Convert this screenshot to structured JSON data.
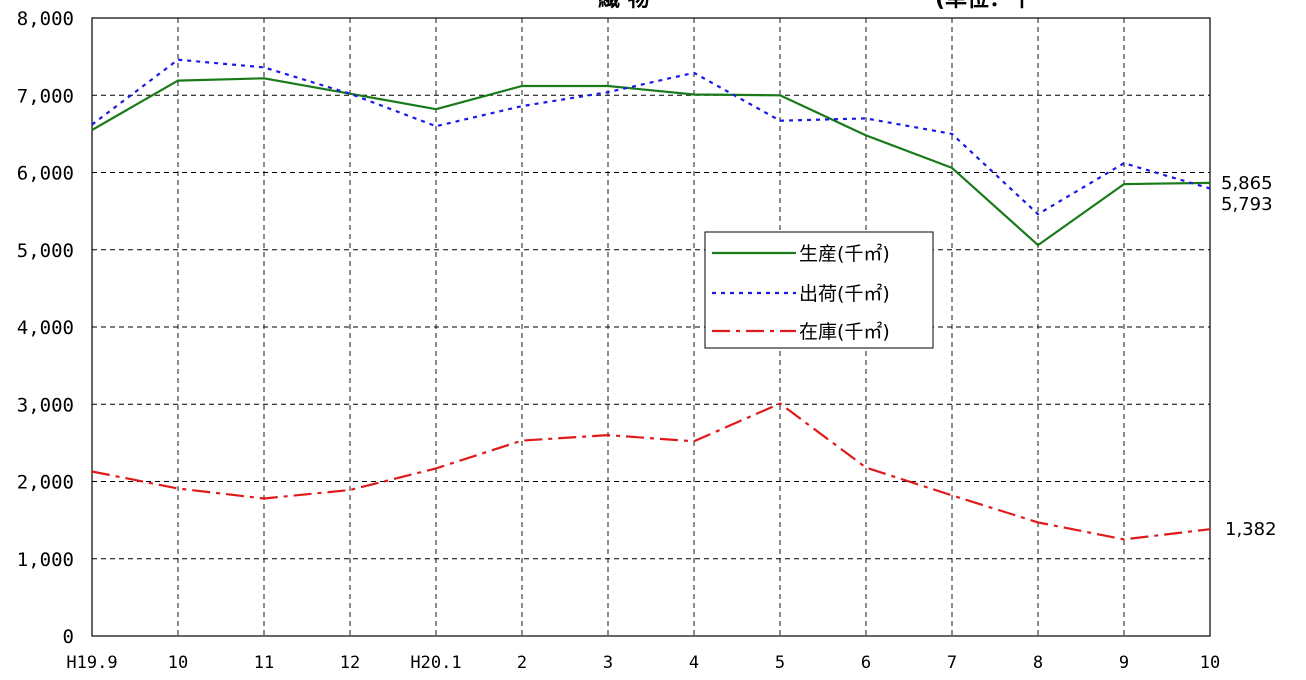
{
  "chart_data": {
    "type": "line",
    "title": "",
    "title_partial": "繊 物",
    "title_unit_partial": "(単位：千",
    "categories": [
      "H19.9",
      "10",
      "11",
      "12",
      "H20.1",
      "2",
      "3",
      "4",
      "5",
      "6",
      "7",
      "8",
      "9",
      "10"
    ],
    "y_ticks": [
      "0",
      "1,000",
      "2,000",
      "3,000",
      "4,000",
      "5,000",
      "6,000",
      "7,000",
      "8,000"
    ],
    "ylim": [
      0,
      8000
    ],
    "grid": true,
    "legend_position": "center-right",
    "series": [
      {
        "name": "生産(千㎡)",
        "color": "#1a7a1a",
        "style": "solid",
        "values": [
          6550,
          7190,
          7220,
          7020,
          6820,
          7120,
          7120,
          7010,
          7000,
          6480,
          6060,
          5060,
          5850,
          5865
        ]
      },
      {
        "name": "出荷(千㎡)",
        "color": "#1a1ae6",
        "style": "dotted",
        "values": [
          6620,
          7460,
          7360,
          7020,
          6600,
          6860,
          7040,
          7290,
          6670,
          6700,
          6500,
          5460,
          6120,
          5793
        ]
      },
      {
        "name": "在庫(千㎡)",
        "color": "#e01a1a",
        "style": "dashdot",
        "values": [
          2130,
          1910,
          1780,
          1890,
          2170,
          2530,
          2600,
          2520,
          3010,
          2180,
          1820,
          1470,
          1250,
          1382
        ]
      }
    ],
    "end_labels": [
      "5,865",
      "5,793",
      "1,382"
    ]
  }
}
